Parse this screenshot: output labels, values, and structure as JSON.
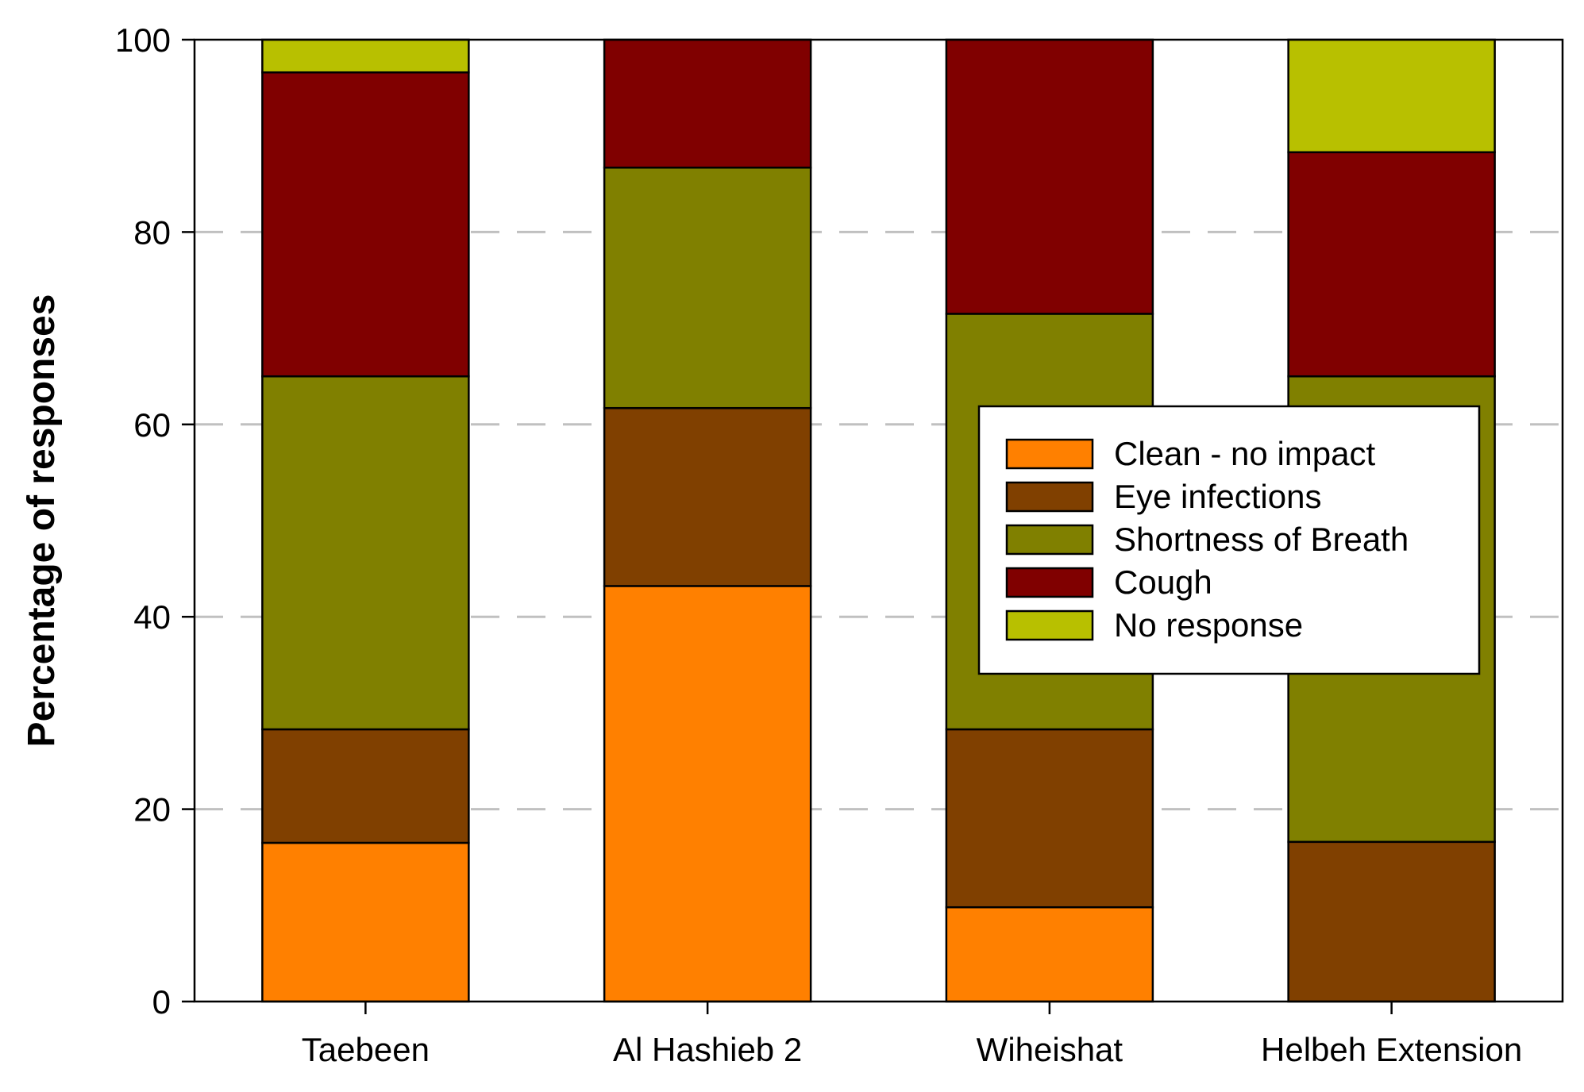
{
  "chart_data": {
    "type": "bar",
    "stacked": true,
    "title": "",
    "xlabel": "",
    "ylabel": "Percentage of responses",
    "ylim": [
      0,
      100
    ],
    "yticks": [
      "0",
      "20",
      "40",
      "60",
      "80",
      "100"
    ],
    "grid": "horizontal dashed",
    "legend_position": "center-right",
    "categories": [
      "Taebeen",
      "Al Hashieb 2",
      "Wiheishat",
      "Helbeh Extension"
    ],
    "series": [
      {
        "name": "Clean - no impact",
        "color": "#FF8000",
        "values": [
          16.5,
          43.2,
          9.8,
          0
        ]
      },
      {
        "name": "Eye infections",
        "color": "#804000",
        "values": [
          11.8,
          18.5,
          18.5,
          16.6
        ]
      },
      {
        "name": "Shortness of Breath",
        "color": "#808000",
        "values": [
          36.7,
          25.0,
          43.2,
          48.4
        ]
      },
      {
        "name": "Cough",
        "color": "#800000",
        "values": [
          31.6,
          13.3,
          28.5,
          23.3
        ]
      },
      {
        "name": "No response",
        "color": "#B8C000",
        "values": [
          3.4,
          0,
          0,
          11.7
        ]
      }
    ]
  }
}
